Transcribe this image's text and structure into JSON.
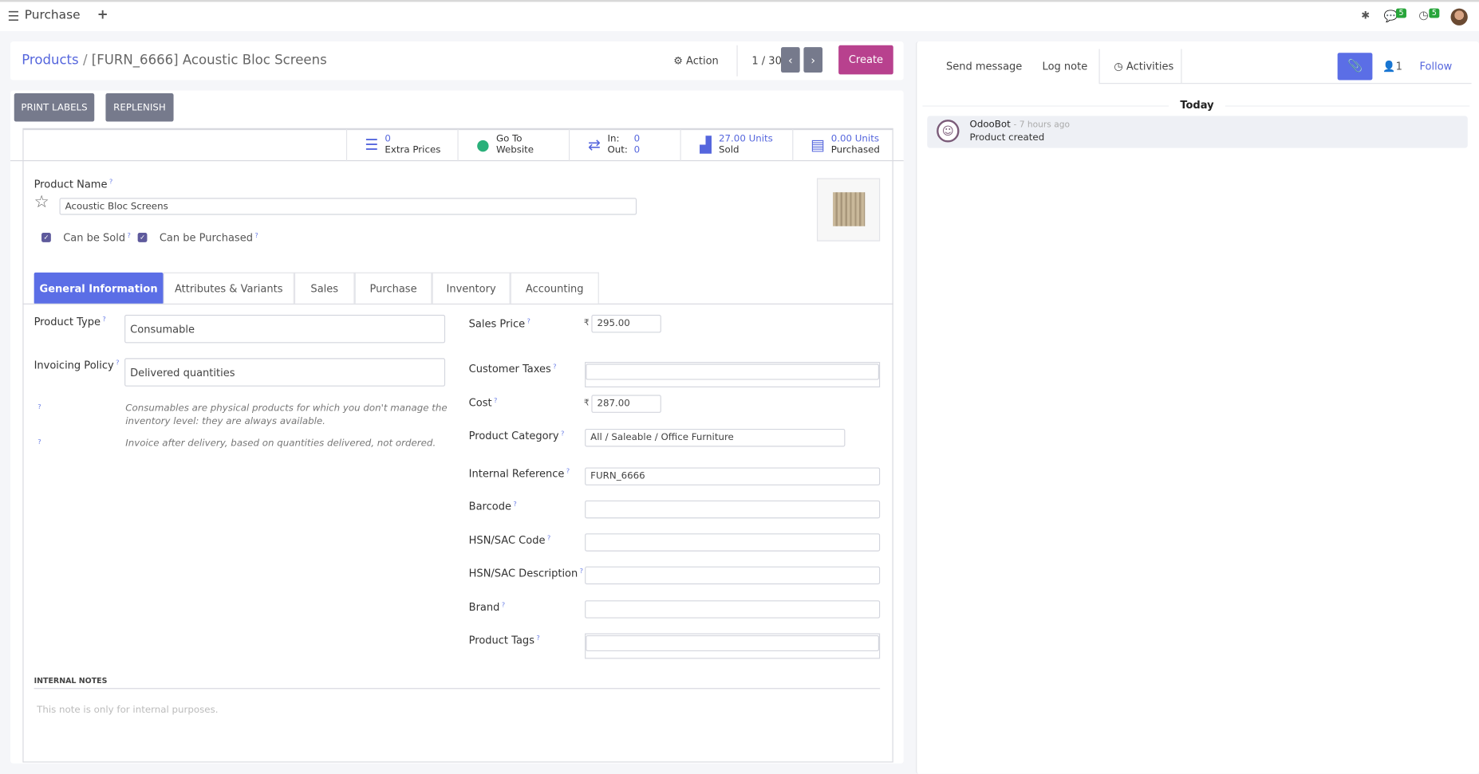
{
  "topbar": {
    "app_name": "Purchase",
    "new_icon": "+",
    "messages_count": "5",
    "activities_count": "5"
  },
  "breadcrumb": {
    "parent": "Products",
    "separator": "/",
    "current": "[FURN_6666] Acoustic Bloc Screens"
  },
  "control": {
    "action_label": "Action",
    "pager": "1 / 30",
    "create_label": "Create"
  },
  "header_buttons": {
    "print_labels": "PRINT LABELS",
    "replenish": "REPLENISH"
  },
  "stats": {
    "extra_prices": {
      "value": "0",
      "label": "Extra Prices"
    },
    "website": {
      "line1": "Go To",
      "line2": "Website"
    },
    "moves": {
      "in_label": "In:",
      "in_value": "0",
      "out_label": "Out:",
      "out_value": "0"
    },
    "sold": {
      "value": "27.00 Units",
      "label": "Sold"
    },
    "purchased": {
      "value": "0.00 Units",
      "label": "Purchased"
    }
  },
  "product": {
    "name_label": "Product Name",
    "name": "Acoustic Bloc Screens",
    "can_be_sold_label": "Can be Sold",
    "can_be_sold": true,
    "can_be_purchased_label": "Can be Purchased",
    "can_be_purchased": true
  },
  "tabs": [
    "General Information",
    "Attributes & Variants",
    "Sales",
    "Purchase",
    "Inventory",
    "Accounting"
  ],
  "active_tab": "General Information",
  "general": {
    "product_type_label": "Product Type",
    "product_type": "Consumable",
    "invoicing_policy_label": "Invoicing Policy",
    "invoicing_policy": "Delivered quantities",
    "help_type": "Consumables are physical products for which you don't manage the inventory level: they are always available.",
    "help_invoice": "Invoice after delivery, based on quantities delivered, not ordered.",
    "currency_symbol": "₹",
    "sales_price_label": "Sales Price",
    "sales_price": "295.00",
    "customer_taxes_label": "Customer Taxes",
    "customer_taxes": "",
    "cost_label": "Cost",
    "cost": "287.00",
    "category_label": "Product Category",
    "category": "All / Saleable / Office Furniture",
    "internal_ref_label": "Internal Reference",
    "internal_ref": "FURN_6666",
    "barcode_label": "Barcode",
    "barcode": "",
    "hsn_code_label": "HSN/SAC Code",
    "hsn_code": "",
    "hsn_desc_label": "HSN/SAC Description",
    "hsn_desc": "",
    "brand_label": "Brand",
    "brand": "",
    "tags_label": "Product Tags",
    "tags": ""
  },
  "notes": {
    "heading": "INTERNAL NOTES",
    "placeholder": "This note is only for internal purposes."
  },
  "chatter": {
    "send_message": "Send message",
    "log_note": "Log note",
    "activities": "Activities",
    "followers_count": "1",
    "follow": "Follow",
    "day_separator": "Today",
    "messages": [
      {
        "author": "OdooBot",
        "time": "- 7 hours ago",
        "body": "Product created"
      }
    ]
  },
  "colors": {
    "primary": "#5b6ee6",
    "create": "#b8418e",
    "badge": "#27a53a",
    "grey_button": "#767a8c"
  }
}
